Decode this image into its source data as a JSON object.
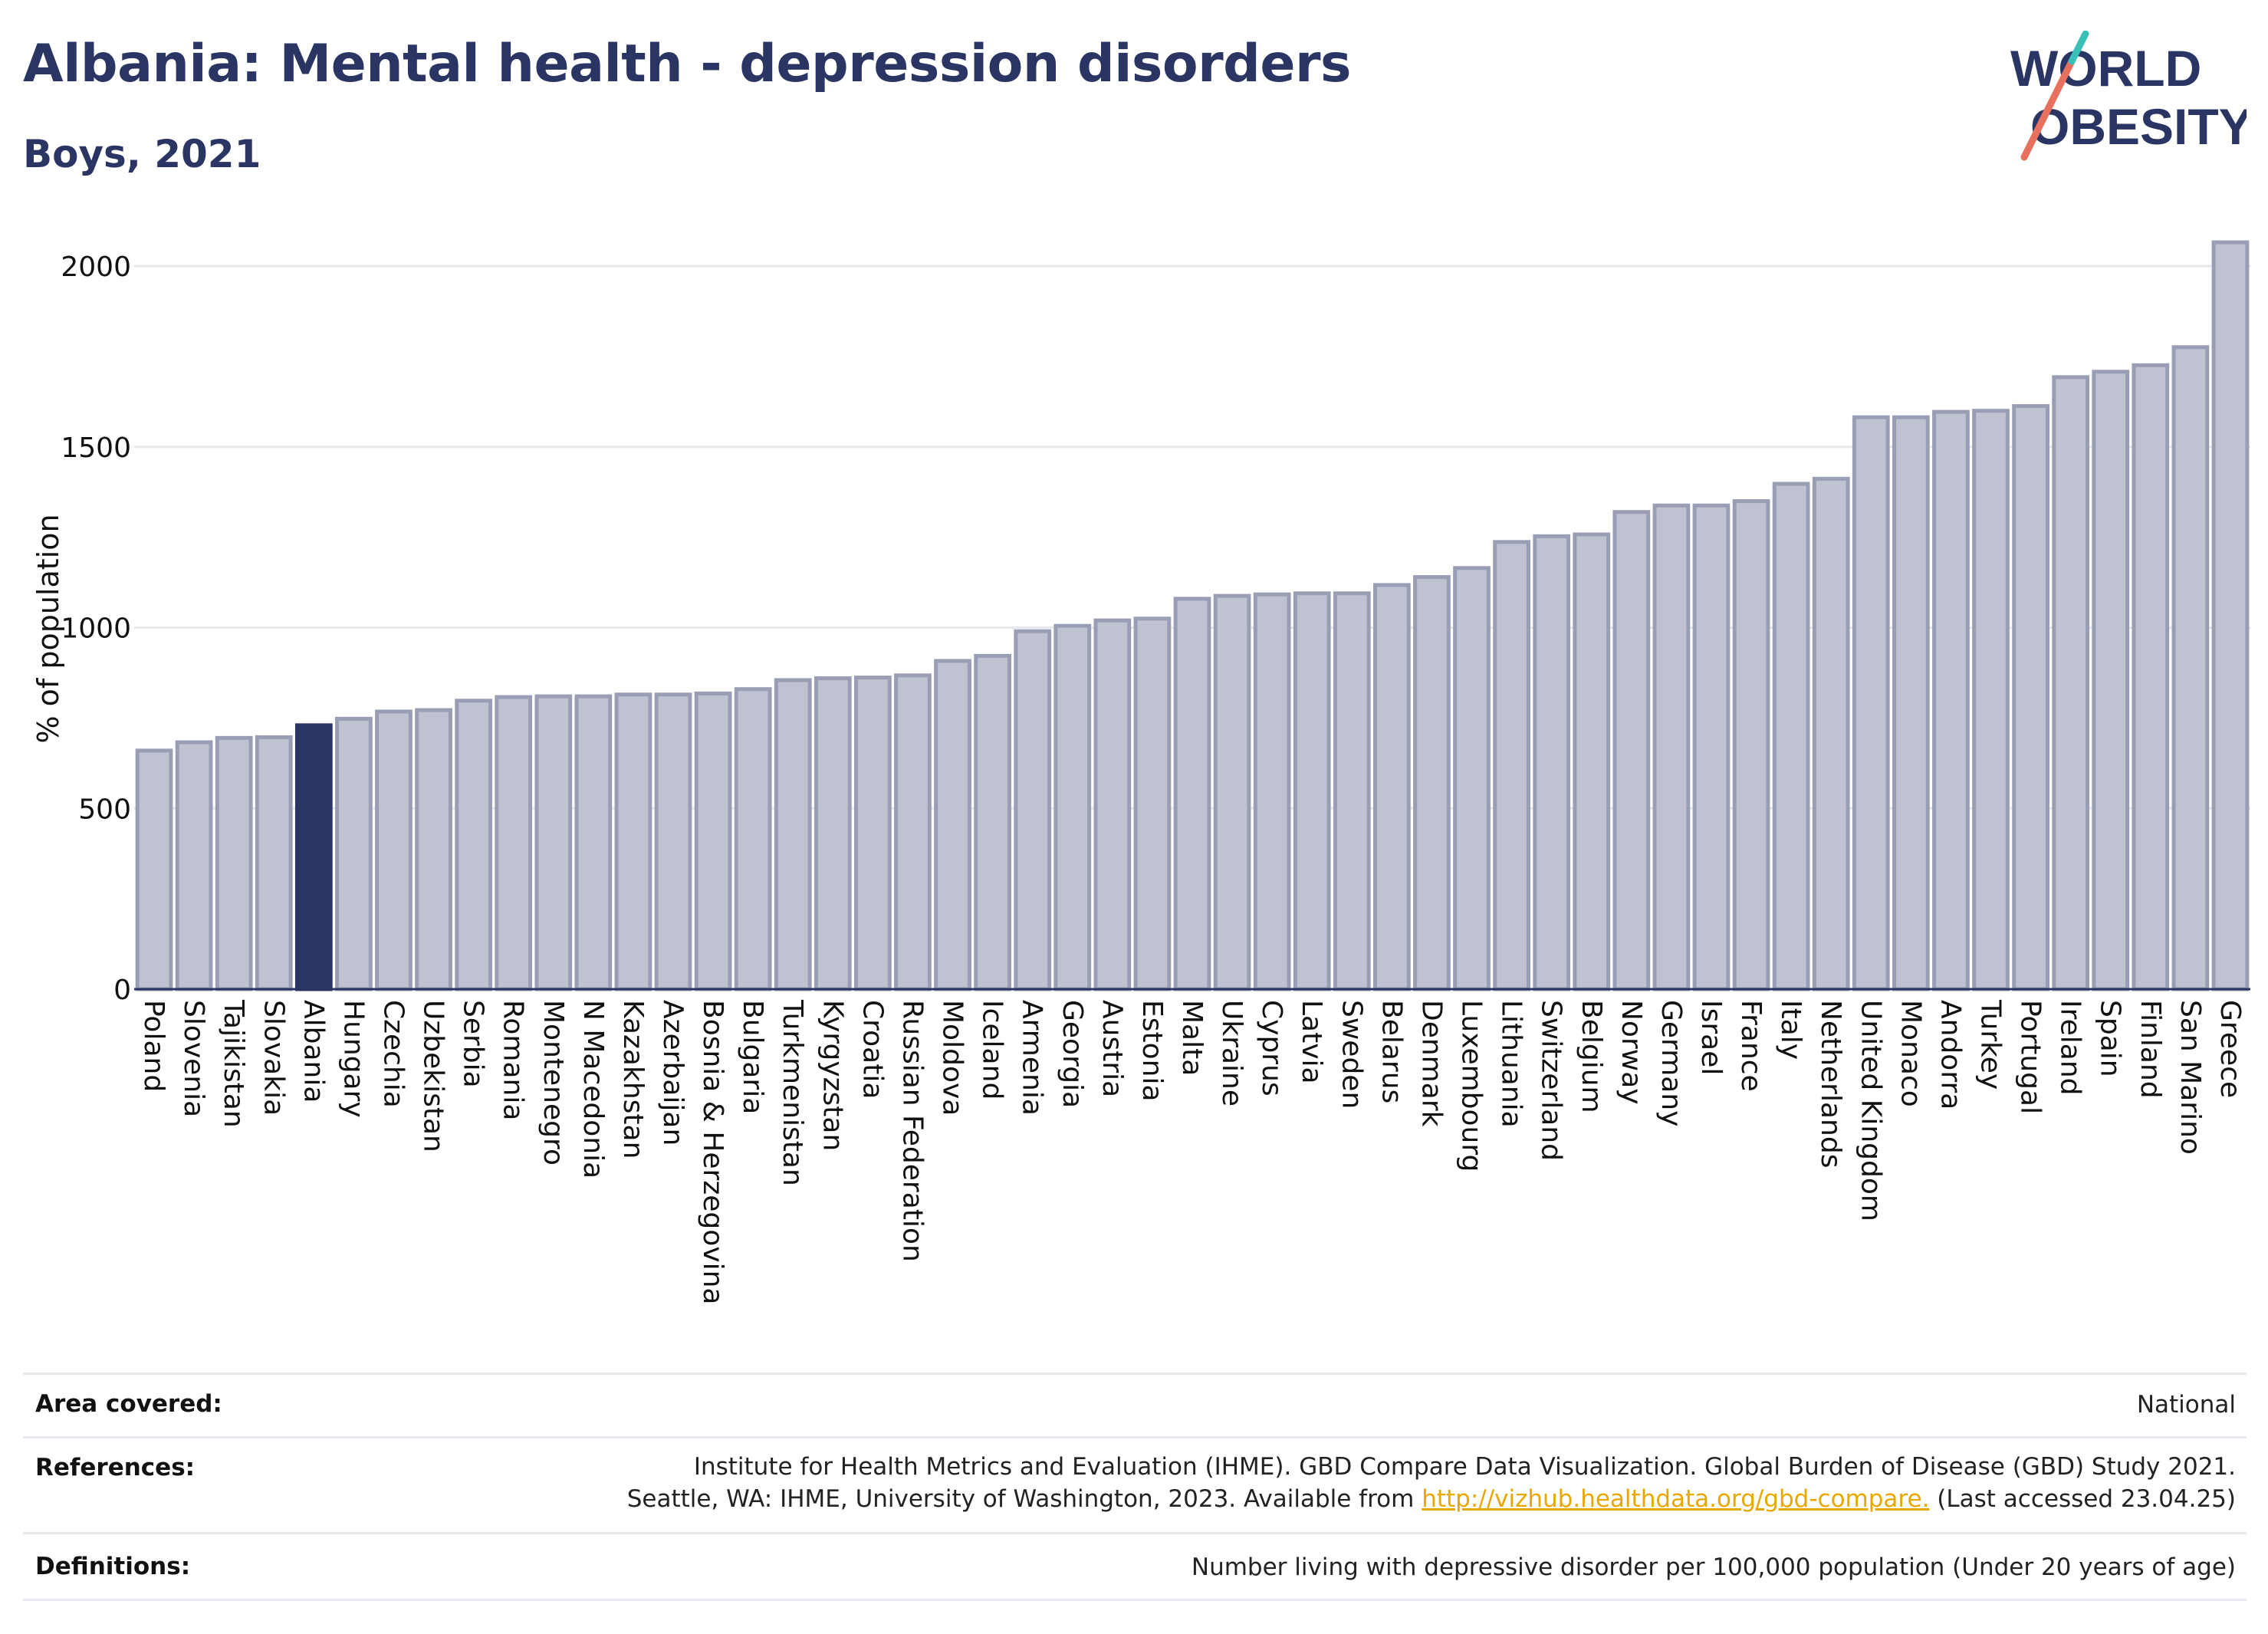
{
  "header": {
    "title": "Albania: Mental health - depression disorders",
    "subtitle": "Boys, 2021"
  },
  "logo": {
    "line1": "WORLD",
    "line2": "OBESITY"
  },
  "colors": {
    "highlight": "#2b3563",
    "bar": "#bfc2d1",
    "bar_stroke": "#9a9eb5",
    "grid": "#e6e7ec"
  },
  "chart_data": {
    "type": "bar",
    "ylabel": "% of population",
    "ylim": [
      0,
      2100
    ],
    "yticks": [
      0,
      500,
      1000,
      1500,
      2000
    ],
    "grid": true,
    "highlight": "Albania",
    "categories": [
      "Poland",
      "Slovenia",
      "Tajikistan",
      "Slovakia",
      "Albania",
      "Hungary",
      "Czechia",
      "Uzbekistan",
      "Serbia",
      "Romania",
      "Montenegro",
      "N Macedonia",
      "Kazakhstan",
      "Azerbaijan",
      "Bosnia & Herzegovina",
      "Bulgaria",
      "Turkmenistan",
      "Kyrgyzstan",
      "Croatia",
      "Russian Federation",
      "Moldova",
      "Iceland",
      "Armenia",
      "Georgia",
      "Austria",
      "Estonia",
      "Malta",
      "Ukraine",
      "Cyprus",
      "Latvia",
      "Sweden",
      "Belarus",
      "Denmark",
      "Luxembourg",
      "Lithuania",
      "Switzerland",
      "Belgium",
      "Norway",
      "Germany",
      "Israel",
      "France",
      "Italy",
      "Netherlands",
      "United Kingdom",
      "Monaco",
      "Andorra",
      "Turkey",
      "Portugal",
      "Ireland",
      "Spain",
      "Finland",
      "San Marino",
      "Greece"
    ],
    "values": [
      660,
      683,
      695,
      697,
      730,
      748,
      768,
      772,
      798,
      808,
      810,
      810,
      815,
      815,
      818,
      830,
      855,
      860,
      862,
      868,
      908,
      922,
      990,
      1005,
      1020,
      1025,
      1080,
      1088,
      1092,
      1095,
      1095,
      1118,
      1140,
      1165,
      1237,
      1253,
      1258,
      1320,
      1338,
      1338,
      1350,
      1398,
      1412,
      1582,
      1582,
      1597,
      1600,
      1613,
      1693,
      1708,
      1726,
      1776,
      2066
    ]
  },
  "info": {
    "area_label": "Area covered:",
    "area_value": "National",
    "references_label": "References:",
    "references_line1": "Institute for Health Metrics and Evaluation (IHME). GBD Compare Data Visualization. Global Burden of Disease (GBD) Study 2021.",
    "references_line2_pre": "Seattle, WA: IHME, University of Washington, 2023. Available from ",
    "references_link": "http://vizhub.healthdata.org/gbd-compare.",
    "references_line2_post": " (Last accessed 23.04.25)",
    "definitions_label": "Definitions:",
    "definitions_value": "Number living with depressive disorder per 100,000 population (Under 20 years of age)"
  }
}
